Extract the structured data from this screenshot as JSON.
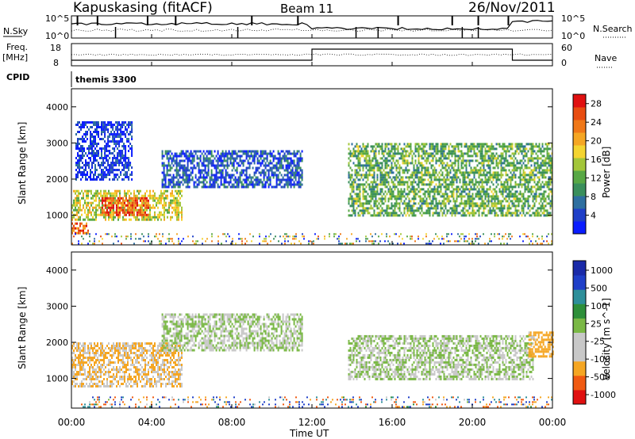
{
  "header": {
    "station": "Kapuskasing (fitACF)",
    "beam": "Beam 11",
    "date": "26/Nov/2011"
  },
  "noise_panel": {
    "left_label": "N.Sky",
    "right_label": "N.Search",
    "left_ticks": [
      "10^5",
      "10^0"
    ],
    "right_ticks": [
      "10^5",
      "10^0"
    ]
  },
  "freq_panel": {
    "left_label_line1": "Freq.",
    "left_label_line2": "[MHz]",
    "right_label": "Nave",
    "left_ticks": [
      "18",
      "8"
    ],
    "right_ticks": [
      "60",
      "0"
    ]
  },
  "cpid_panel": {
    "label": "CPID",
    "value": "themis 3300"
  },
  "axes": {
    "y_label": "Slant Range [km]",
    "y_ticks": [
      "1000",
      "2000",
      "3000",
      "4000"
    ],
    "x_label": "Time UT",
    "x_ticks": [
      "00:00",
      "04:00",
      "08:00",
      "12:00",
      "16:00",
      "20:00",
      "00:00"
    ]
  },
  "colors": {
    "power_scale": [
      "#0a1dff",
      "#1f3fc8",
      "#2e6fa0",
      "#3a8f5c",
      "#58a845",
      "#a3c63a",
      "#f4d430",
      "#f5a623",
      "#f07818",
      "#e84c10",
      "#e01010"
    ],
    "velocity_scale": [
      "#e01010",
      "#f05a12",
      "#f5a623",
      "#c8c8c8",
      "#c8c8c8",
      "#7ab845",
      "#2e8f3a",
      "#2e8f9a",
      "#1f3fc8",
      "#1a2aa8"
    ]
  },
  "chart_data": [
    {
      "type": "heatmap",
      "title": "",
      "xlabel": "Time UT",
      "ylabel": "Slant Range [km]",
      "xlim": [
        0,
        24
      ],
      "ylim": [
        180,
        4500
      ],
      "colorbar": {
        "label": "Power [dB]",
        "ticks": [
          4,
          8,
          12,
          16,
          20,
          24,
          28
        ],
        "range": [
          0,
          30
        ]
      },
      "regions": [
        {
          "t": [
            0.2,
            3.0
          ],
          "range_km": [
            2000,
            3600
          ],
          "value": 3
        },
        {
          "t": [
            0.0,
            5.5
          ],
          "range_km": [
            900,
            1700
          ],
          "value": 16
        },
        {
          "t": [
            1.5,
            3.8
          ],
          "range_km": [
            1000,
            1500
          ],
          "value": 26
        },
        {
          "t": [
            0.0,
            0.8
          ],
          "range_km": [
            500,
            800
          ],
          "value": 24
        },
        {
          "t": [
            4.5,
            11.5
          ],
          "range_km": [
            1800,
            2800
          ],
          "value": 5
        },
        {
          "t": [
            13.8,
            24.0
          ],
          "range_km": [
            1000,
            3000
          ],
          "value": 12
        }
      ]
    },
    {
      "type": "heatmap",
      "title": "",
      "xlabel": "Time UT",
      "ylabel": "Slant Range [km]",
      "xlim": [
        0,
        24
      ],
      "ylim": [
        180,
        4500
      ],
      "colorbar": {
        "label": "Velocity [m s^-1]",
        "ticks": [
          "1000",
          "500",
          "100",
          "25",
          "-25",
          "-100",
          "-500",
          "-1000"
        ]
      },
      "regions": [
        {
          "t": [
            0.0,
            5.5
          ],
          "range_km": [
            800,
            2000
          ],
          "value": -100
        },
        {
          "t": [
            4.5,
            11.5
          ],
          "range_km": [
            1800,
            2800
          ],
          "value": 0
        },
        {
          "t": [
            13.8,
            23.0
          ],
          "range_km": [
            1000,
            2200
          ],
          "value": 0
        },
        {
          "t": [
            22.8,
            24.0
          ],
          "range_km": [
            1600,
            2300
          ],
          "value": -150
        }
      ]
    }
  ]
}
